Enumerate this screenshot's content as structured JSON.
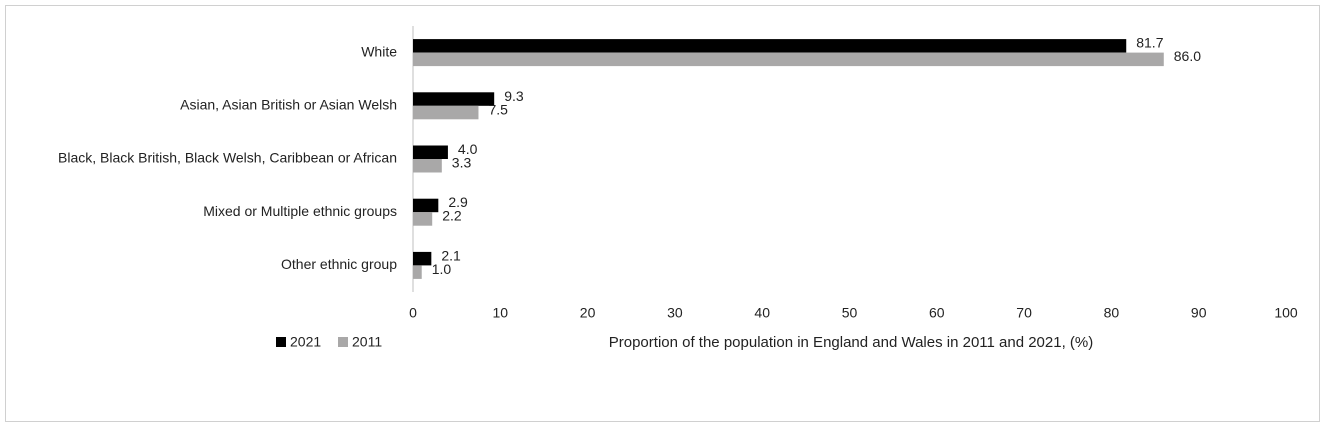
{
  "chart_data": {
    "type": "bar",
    "orientation": "horizontal",
    "categories": [
      "White",
      "Asian, Asian British or Asian Welsh",
      "Black, Black British, Black Welsh, Caribbean or African",
      "Mixed or Multiple ethnic groups",
      "Other ethnic group"
    ],
    "series": [
      {
        "name": "2021",
        "color": "#000000",
        "values": [
          81.7,
          9.3,
          4.0,
          2.9,
          2.1
        ],
        "value_labels": [
          "81.7",
          "9.3",
          "4.0",
          "2.9",
          "2.1"
        ]
      },
      {
        "name": "2011",
        "color": "#a9a8a8",
        "values": [
          86.0,
          7.5,
          3.3,
          2.2,
          1.0
        ],
        "value_labels": [
          "86.0",
          "7.5",
          "3.3",
          "2.2",
          "1.0"
        ]
      }
    ],
    "x_label": "Proportion of the population in England and Wales in 2011 and 2021, (%)",
    "xlim": [
      0,
      100
    ],
    "xticks": [
      0,
      10,
      20,
      30,
      40,
      50,
      60,
      70,
      80,
      90,
      100
    ],
    "grid": false,
    "legend": "bottom-left"
  }
}
